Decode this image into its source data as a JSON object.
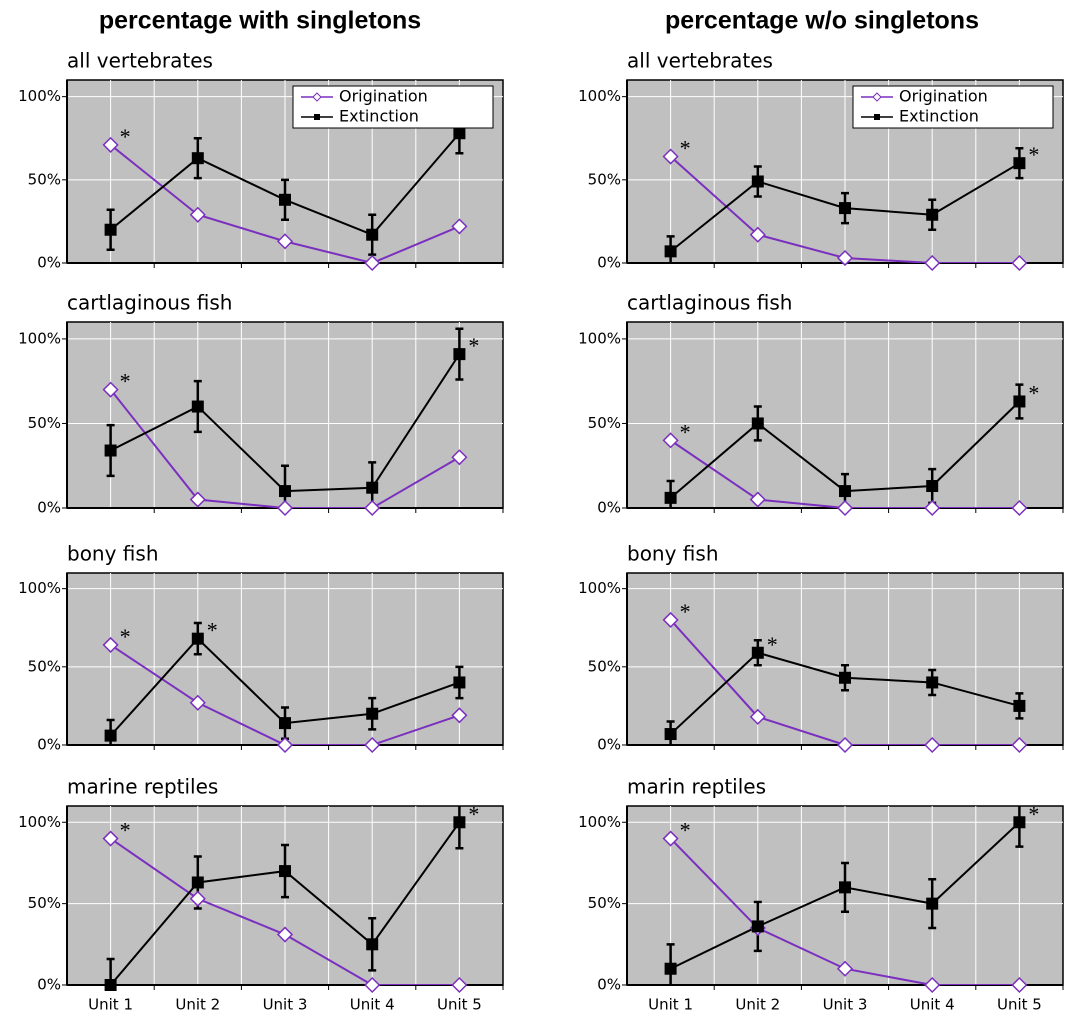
{
  "headers": [
    "percentage with singletons",
    "percentage w/o singletons"
  ],
  "chart_data": [
    {
      "type": "line",
      "title": "all vertebrates",
      "categories": [
        null,
        null,
        null,
        null,
        null
      ],
      "ylim": [
        0,
        110
      ],
      "yticks": [
        {
          "value": 0,
          "label": "0%"
        },
        {
          "value": 50,
          "label": "50%"
        },
        {
          "value": 100,
          "label": "100%"
        }
      ],
      "grid": true,
      "legend": "upper right",
      "series": [
        {
          "name": "Origination",
          "color": "#7b2fbf",
          "marker": "diamond",
          "values": [
            71,
            29,
            13,
            0,
            22
          ],
          "notes": [
            "*",
            null,
            null,
            null,
            null
          ]
        },
        {
          "name": "Extinction",
          "color": "#000000",
          "marker": "square",
          "values": [
            20,
            63,
            38,
            17,
            78
          ],
          "errors": [
            12,
            12,
            12,
            12,
            12
          ],
          "notes": [
            null,
            null,
            null,
            null,
            "*"
          ]
        }
      ]
    },
    {
      "type": "line",
      "title": "all vertebrates",
      "categories": [
        null,
        null,
        null,
        null,
        null
      ],
      "ylim": [
        0,
        110
      ],
      "yticks": [
        {
          "value": 0,
          "label": "0%"
        },
        {
          "value": 50,
          "label": "50%"
        },
        {
          "value": 100,
          "label": "100%"
        }
      ],
      "grid": true,
      "legend": "upper right",
      "series": [
        {
          "name": "Origination",
          "color": "#7b2fbf",
          "marker": "diamond",
          "values": [
            64,
            17,
            3,
            0,
            0
          ],
          "notes": [
            "*",
            null,
            null,
            null,
            null
          ]
        },
        {
          "name": "Extinction",
          "color": "#000000",
          "marker": "square",
          "values": [
            7,
            49,
            33,
            29,
            60
          ],
          "errors": [
            9,
            9,
            9,
            9,
            9
          ],
          "notes": [
            null,
            null,
            null,
            null,
            "*"
          ]
        }
      ]
    },
    {
      "type": "line",
      "title": "cartlaginous fish",
      "categories": [
        null,
        null,
        null,
        null,
        null
      ],
      "ylim": [
        0,
        110
      ],
      "yticks": [
        {
          "value": 0,
          "label": "0%"
        },
        {
          "value": 50,
          "label": "50%"
        },
        {
          "value": 100,
          "label": "100%"
        }
      ],
      "grid": true,
      "series": [
        {
          "color": "#7b2fbf",
          "marker": "diamond",
          "values": [
            70,
            5,
            0,
            0,
            30
          ],
          "notes": [
            "*",
            null,
            null,
            null,
            null
          ]
        },
        {
          "color": "#000000",
          "marker": "square",
          "values": [
            34,
            60,
            10,
            12,
            91
          ],
          "errors": [
            15,
            15,
            15,
            15,
            15
          ],
          "notes": [
            null,
            null,
            null,
            null,
            "*"
          ]
        }
      ]
    },
    {
      "type": "line",
      "title": "cartlaginous fish",
      "categories": [
        null,
        null,
        null,
        null,
        null
      ],
      "ylim": [
        0,
        110
      ],
      "yticks": [
        {
          "value": 0,
          "label": "0%"
        },
        {
          "value": 50,
          "label": "50%"
        },
        {
          "value": 100,
          "label": "100%"
        }
      ],
      "grid": true,
      "series": [
        {
          "color": "#7b2fbf",
          "marker": "diamond",
          "values": [
            40,
            5,
            0,
            0,
            0
          ],
          "notes": [
            "*",
            null,
            null,
            null,
            null
          ]
        },
        {
          "color": "#000000",
          "marker": "square",
          "values": [
            6,
            50,
            10,
            13,
            63
          ],
          "errors": [
            10,
            10,
            10,
            10,
            10
          ],
          "notes": [
            null,
            null,
            null,
            null,
            "*"
          ]
        }
      ]
    },
    {
      "type": "line",
      "title": "bony fish",
      "categories": [
        null,
        null,
        null,
        null,
        null
      ],
      "ylim": [
        0,
        110
      ],
      "yticks": [
        {
          "value": 0,
          "label": "0%"
        },
        {
          "value": 50,
          "label": "50%"
        },
        {
          "value": 100,
          "label": "100%"
        }
      ],
      "grid": true,
      "series": [
        {
          "color": "#7b2fbf",
          "marker": "diamond",
          "values": [
            64,
            27,
            0,
            0,
            19
          ],
          "notes": [
            "*",
            null,
            null,
            null,
            null
          ]
        },
        {
          "color": "#000000",
          "marker": "square",
          "values": [
            6,
            68,
            14,
            20,
            40
          ],
          "errors": [
            10,
            10,
            10,
            10,
            10
          ],
          "notes": [
            null,
            "*",
            null,
            null,
            null
          ]
        }
      ]
    },
    {
      "type": "line",
      "title": "bony fish",
      "categories": [
        null,
        null,
        null,
        null,
        null
      ],
      "ylim": [
        0,
        110
      ],
      "yticks": [
        {
          "value": 0,
          "label": "0%"
        },
        {
          "value": 50,
          "label": "50%"
        },
        {
          "value": 100,
          "label": "100%"
        }
      ],
      "grid": true,
      "series": [
        {
          "color": "#7b2fbf",
          "marker": "diamond",
          "values": [
            80,
            18,
            0,
            0,
            0
          ],
          "notes": [
            "*",
            null,
            null,
            null,
            null
          ]
        },
        {
          "color": "#000000",
          "marker": "square",
          "values": [
            7,
            59,
            43,
            40,
            25
          ],
          "errors": [
            8,
            8,
            8,
            8,
            8
          ],
          "notes": [
            null,
            "*",
            null,
            null,
            null
          ]
        }
      ]
    },
    {
      "type": "line",
      "title": "marine reptiles",
      "categories": [
        "Unit 1",
        "Unit 2",
        "Unit 3",
        "Unit 4",
        "Unit 5"
      ],
      "ylim": [
        0,
        110
      ],
      "yticks": [
        {
          "value": 0,
          "label": "0%"
        },
        {
          "value": 50,
          "label": "50%"
        },
        {
          "value": 100,
          "label": "100%"
        }
      ],
      "grid": true,
      "series": [
        {
          "color": "#7b2fbf",
          "marker": "diamond",
          "values": [
            90,
            53,
            31,
            0,
            0
          ],
          "notes": [
            "*",
            null,
            null,
            null,
            null
          ]
        },
        {
          "color": "#000000",
          "marker": "square",
          "values": [
            0,
            63,
            70,
            25,
            100
          ],
          "errors": [
            16,
            16,
            16,
            16,
            16
          ],
          "notes": [
            null,
            null,
            null,
            null,
            "*"
          ]
        }
      ]
    },
    {
      "type": "line",
      "title": "marin reptiles",
      "categories": [
        "Unit 1",
        "Unit 2",
        "Unit 3",
        "Unit 4",
        "Unit 5"
      ],
      "ylim": [
        0,
        110
      ],
      "yticks": [
        {
          "value": 0,
          "label": "0%"
        },
        {
          "value": 50,
          "label": "50%"
        },
        {
          "value": 100,
          "label": "100%"
        }
      ],
      "grid": true,
      "series": [
        {
          "color": "#7b2fbf",
          "marker": "diamond",
          "values": [
            90,
            35,
            10,
            0,
            0
          ],
          "notes": [
            "*",
            null,
            null,
            null,
            null
          ]
        },
        {
          "color": "#000000",
          "marker": "square",
          "values": [
            10,
            36,
            60,
            50,
            100
          ],
          "errors": [
            15,
            15,
            15,
            15,
            15
          ],
          "notes": [
            null,
            null,
            null,
            null,
            "*"
          ]
        }
      ]
    }
  ]
}
